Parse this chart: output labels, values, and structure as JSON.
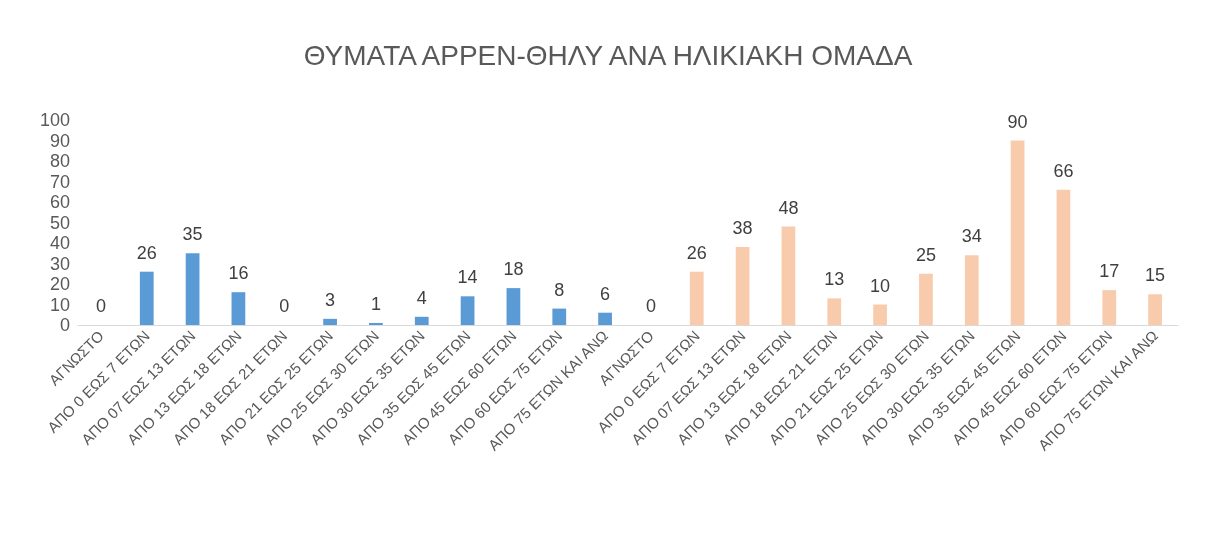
{
  "chart_data": {
    "type": "bar",
    "title": "ΘΥΜΑΤΑ ΑΡΡΕΝ-ΘΗΛΥ ΑΝΑ ΗΛΙΚΙΑΚΗ ΟΜΑΔΑ",
    "categories": [
      "ΑΓΝΩΣΤΟ",
      "ΑΠΟ 0 ΕΩΣ 7 ΕΤΩΝ",
      "ΑΠΟ 07 ΕΩΣ 13 ΕΤΩΝ",
      "ΑΠΟ 13 ΕΩΣ 18 ΕΤΩΝ",
      "ΑΠΟ 18 ΕΩΣ 21 ΕΤΩΝ",
      "ΑΠΟ 21 ΕΩΣ 25 ΕΤΩΝ",
      "ΑΠΟ 25 ΕΩΣ 30 ΕΤΩΝ",
      "ΑΠΟ 30 ΕΩΣ 35 ΕΤΩΝ",
      "ΑΠΟ 35 ΕΩΣ 45 ΕΤΩΝ",
      "ΑΠΟ 45 ΕΩΣ 60 ΕΤΩΝ",
      "ΑΠΟ 60 ΕΩΣ 75 ΕΤΩΝ",
      "ΑΠΟ 75 ΕΤΩΝ ΚΑΙ ΑΝΩ",
      "ΑΓΝΩΣΤΟ",
      "ΑΠΟ 0 ΕΩΣ 7 ΕΤΩΝ",
      "ΑΠΟ 07 ΕΩΣ 13 ΕΤΩΝ",
      "ΑΠΟ 13 ΕΩΣ 18 ΕΤΩΝ",
      "ΑΠΟ 18 ΕΩΣ 21 ΕΤΩΝ",
      "ΑΠΟ 21 ΕΩΣ 25 ΕΤΩΝ",
      "ΑΠΟ 25 ΕΩΣ 30 ΕΤΩΝ",
      "ΑΠΟ 30 ΕΩΣ 35 ΕΤΩΝ",
      "ΑΠΟ 35 ΕΩΣ 45 ΕΤΩΝ",
      "ΑΠΟ 45 ΕΩΣ 60 ΕΤΩΝ",
      "ΑΠΟ 60 ΕΩΣ 75 ΕΤΩΝ",
      "ΑΠΟ 75 ΕΤΩΝ ΚΑΙ ΑΝΩ"
    ],
    "values": [
      0,
      26,
      35,
      16,
      0,
      3,
      1,
      4,
      14,
      18,
      8,
      6,
      0,
      26,
      38,
      48,
      13,
      10,
      25,
      34,
      90,
      66,
      17,
      15
    ],
    "colors": [
      "#5b9bd5",
      "#5b9bd5",
      "#5b9bd5",
      "#5b9bd5",
      "#5b9bd5",
      "#5b9bd5",
      "#5b9bd5",
      "#5b9bd5",
      "#5b9bd5",
      "#5b9bd5",
      "#5b9bd5",
      "#5b9bd5",
      "#f8cbad",
      "#f8cbad",
      "#f8cbad",
      "#f8cbad",
      "#f8cbad",
      "#f8cbad",
      "#f8cbad",
      "#f8cbad",
      "#f8cbad",
      "#f8cbad",
      "#f8cbad",
      "#f8cbad"
    ],
    "ylim": [
      0,
      100
    ],
    "yticks": [
      0,
      10,
      20,
      30,
      40,
      50,
      60,
      70,
      80,
      90,
      100
    ],
    "data_labels": true,
    "grid": false
  }
}
